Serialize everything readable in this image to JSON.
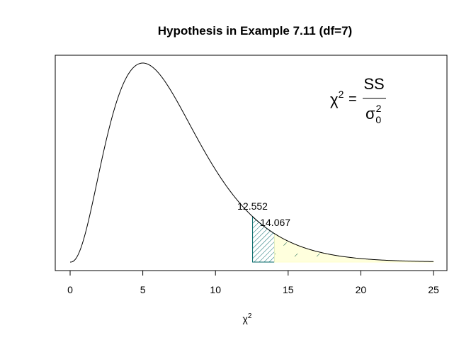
{
  "chart_data": {
    "type": "area",
    "title": "Hypothesis in Example 7.11 (df=7)",
    "distribution": "chi-square",
    "df": 7,
    "xlabel": {
      "symbol": "χ",
      "superscript": "2"
    },
    "ylabel": "",
    "xlim": [
      0,
      25
    ],
    "x_ticks": [
      0,
      5,
      10,
      15,
      20,
      25
    ],
    "axis_box": true,
    "grid": false,
    "critical_values": [
      {
        "value": 12.552,
        "label": "12.552"
      },
      {
        "value": 14.067,
        "label": "14.067"
      }
    ],
    "shaded_regions": [
      {
        "from": 12.552,
        "to": 14.067,
        "fill": "#ffffff",
        "hatch_color": "#006666",
        "border_color": "#006666"
      },
      {
        "from": 14.067,
        "to": 25,
        "fill": "#ffffdd",
        "hatch_color": "#005544",
        "border_color": "#ffffcc"
      }
    ],
    "curve_color": "#000000",
    "formula": {
      "lhs": "χ",
      "lhs_sup": "2",
      "equals": "=",
      "numerator": "SS",
      "denominator": "σ",
      "denominator_sup": "2",
      "denominator_sub": "0"
    }
  }
}
